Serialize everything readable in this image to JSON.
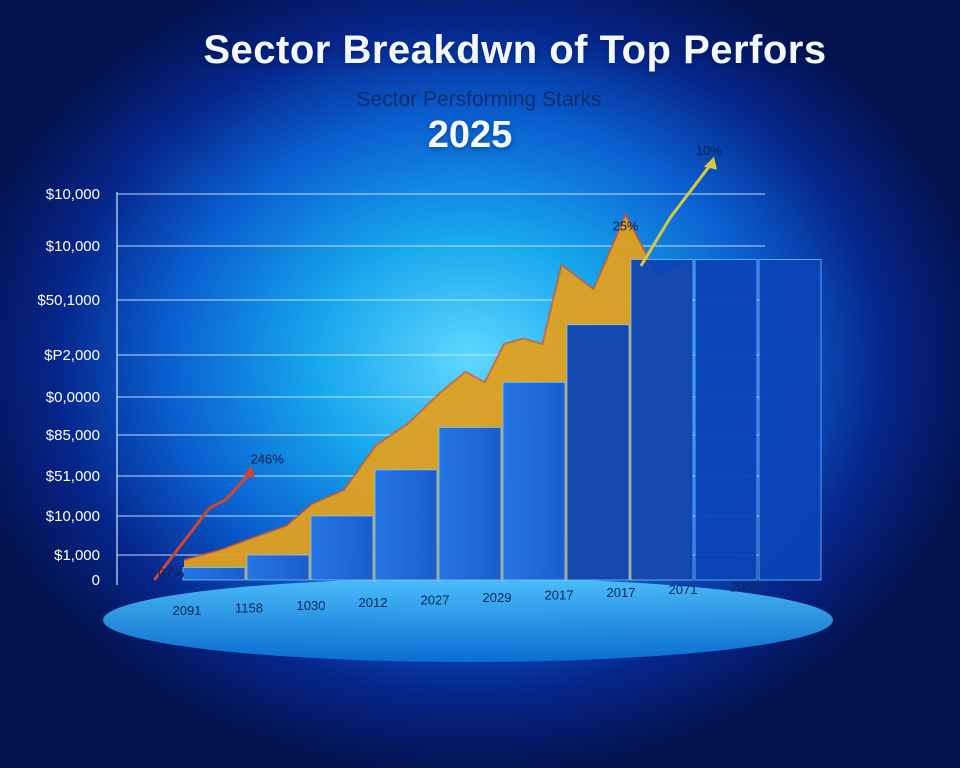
{
  "header": {
    "title": "Sector Breakdwn of Top Perfors",
    "subtitle": "Sector Persforming Starks",
    "year": "2025"
  },
  "colors": {
    "bar": "#1565e8",
    "bar_dark": "#0b44b8",
    "band": "#e0a020",
    "line_red": "#d4452e",
    "line_yellow": "#d6c840",
    "grid": "#cfe7ff",
    "platform": "#3ab4f2"
  },
  "chart_data": {
    "type": "bar",
    "title": "Sector Breakdwn of Top Perfors",
    "subtitle": "Sector Persforming Starks",
    "xlabel": "",
    "ylabel": "",
    "y_tick_labels": [
      "0",
      "$1,000",
      "$10,000",
      "$51,000",
      "$85,000",
      "$0,0000",
      "$P2,000",
      "$50,1000",
      "$10,000",
      "$10,000"
    ],
    "categories": [
      "2091",
      "1158",
      "1030",
      "2012",
      "2027",
      "2029",
      "2017",
      "2017",
      "2071",
      "2055"
    ],
    "series": [
      {
        "values": [
          0.5,
          1,
          2,
          3.15,
          4.2,
          5.35,
          6.55,
          7.75,
          7.75,
          7.75
        ]
      }
    ],
    "band_values": [
      0.8,
      1.4,
      2.3,
      3.75,
      5.1,
      6.2,
      7.1,
      8.6,
      9.0,
      8.3
    ],
    "band_top_series": [
      {
        "x": 1.0,
        "y": 0.8
      },
      {
        "x": 1.6,
        "y": 1.15
      },
      {
        "x": 2.0,
        "y": 1.4
      },
      {
        "x": 2.6,
        "y": 1.75
      },
      {
        "x": 3.0,
        "y": 2.3
      },
      {
        "x": 3.5,
        "y": 2.65
      },
      {
        "x": 4.0,
        "y": 3.75
      },
      {
        "x": 4.5,
        "y": 4.3
      },
      {
        "x": 5.0,
        "y": 5.1
      },
      {
        "x": 5.4,
        "y": 5.6
      },
      {
        "x": 5.7,
        "y": 5.35
      },
      {
        "x": 6.0,
        "y": 6.2
      },
      {
        "x": 6.3,
        "y": 6.3
      },
      {
        "x": 6.6,
        "y": 6.2
      },
      {
        "x": 6.9,
        "y": 7.65
      },
      {
        "x": 7.4,
        "y": 7.2
      },
      {
        "x": 7.9,
        "y": 8.6
      },
      {
        "x": 8.4,
        "y": 7.45
      },
      {
        "x": 8.9,
        "y": 7.75
      }
    ],
    "trend_red": [
      {
        "x": 0.55,
        "y": 0.05
      },
      {
        "x": 1.4,
        "y": 2.2
      },
      {
        "x": 1.65,
        "y": 2.4
      },
      {
        "x": 2.05,
        "y": 3.1
      }
    ],
    "trend_yellow": [
      {
        "x": 8.15,
        "y": 7.65
      },
      {
        "x": 8.6,
        "y": 8.55
      },
      {
        "x": 9.25,
        "y": 9.6
      }
    ],
    "annotations": [
      {
        "text": "07%",
        "x": 0.8,
        "y": 0.1
      },
      {
        "text": "246%",
        "x": 2.3,
        "y": 3.3
      },
      {
        "text": "25%",
        "x": 7.9,
        "y": 8.3
      },
      {
        "text": "10%",
        "x": 9.2,
        "y": 9.75
      }
    ],
    "ylim": [
      0,
      10
    ],
    "grid": true,
    "legend": "none"
  }
}
